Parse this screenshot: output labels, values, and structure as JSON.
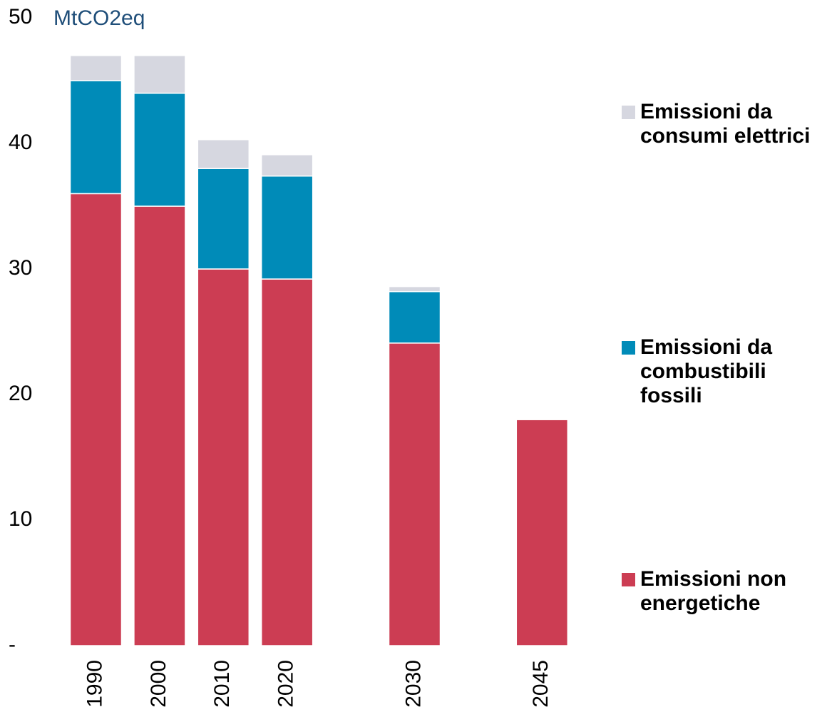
{
  "chart_data": {
    "type": "bar",
    "stacked": true,
    "y_unit": "MtCO2eq",
    "categories": [
      "1990",
      "2000",
      "2010",
      "2020",
      null,
      "2030",
      null,
      "2045"
    ],
    "series": [
      {
        "name": "Emissioni non energetiche",
        "color": "#cc3d53",
        "values": [
          36,
          35,
          30,
          29.2,
          null,
          24.1,
          null,
          18
        ]
      },
      {
        "name": "Emissioni da combustibili fossili",
        "color": "#008bb8",
        "values": [
          9,
          9,
          8,
          8.2,
          null,
          4.1,
          null,
          0
        ]
      },
      {
        "name": "Emissioni da consumi elettrici",
        "color": "#d6d7e0",
        "values": [
          2,
          3,
          2.3,
          1.7,
          null,
          0.4,
          null,
          0
        ]
      }
    ],
    "ylim": [
      0,
      50
    ],
    "yticks": [
      {
        "value": 0,
        "label": "-"
      },
      10,
      20,
      30,
      40,
      50
    ],
    "grid": false,
    "legend": "right"
  }
}
